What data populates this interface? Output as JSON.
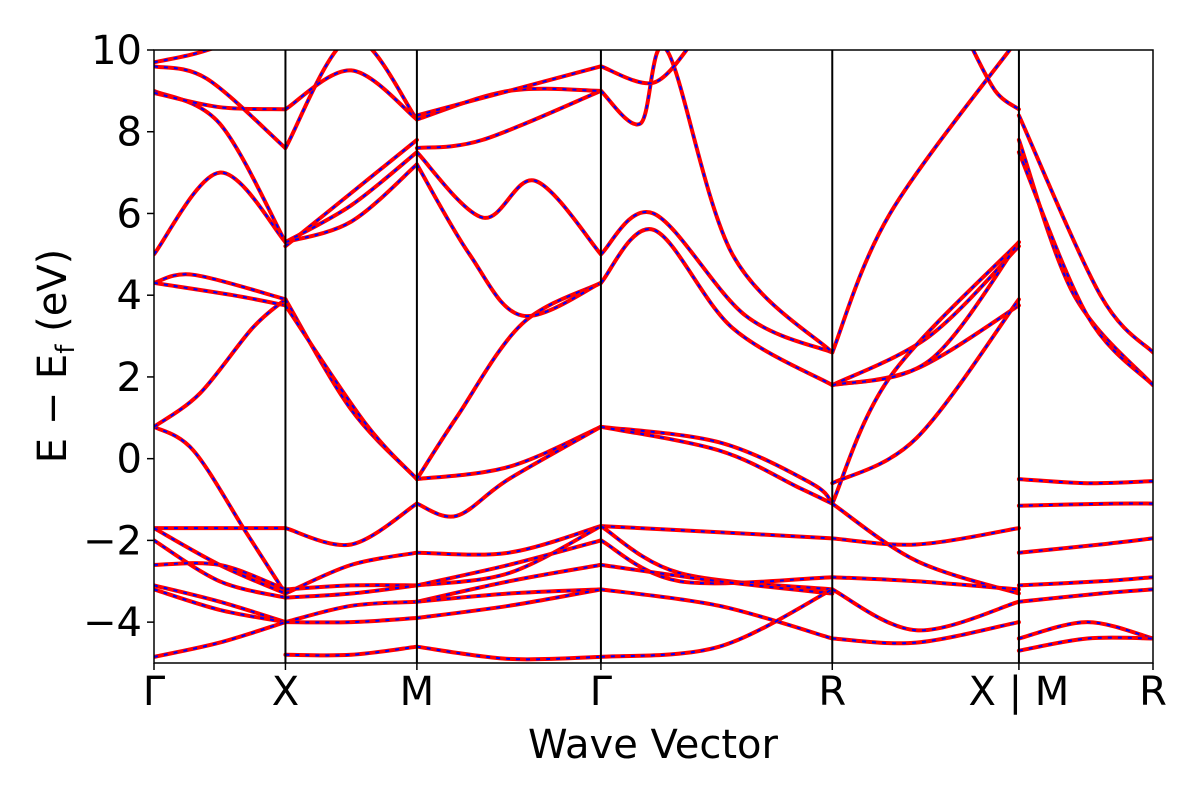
{
  "chart_data": {
    "type": "line",
    "title": "",
    "xlabel": "Wave Vector",
    "ylabel": "E − E_f (eV)",
    "ylabel_parts": {
      "main": "E − E",
      "sub": "f",
      "unit": " (eV)"
    },
    "ylim": [
      -5,
      10
    ],
    "yticks": [
      -4,
      -2,
      0,
      2,
      4,
      6,
      8,
      10
    ],
    "ytick_labels": [
      "−4",
      "−2",
      "0",
      "2",
      "4",
      "6",
      "8",
      "10"
    ],
    "xlim": [
      0,
      7.6
    ],
    "kpoints": [
      {
        "x": 0.0,
        "label": "Γ"
      },
      {
        "x": 1.0,
        "label": "X"
      },
      {
        "x": 2.0,
        "label": "M"
      },
      {
        "x": 3.4,
        "label": "Γ"
      },
      {
        "x": 5.16,
        "label": "R"
      },
      {
        "x": 6.58,
        "label": "X | M"
      },
      {
        "x": 7.6,
        "label": "R"
      }
    ],
    "grid": false,
    "legend": "none",
    "series_styles": [
      {
        "color": "#ff0000",
        "style": "solid"
      },
      {
        "color": "#0000ff",
        "style": "dashed"
      }
    ],
    "bands": [
      {
        "x": [
          0,
          0.3,
          0.7,
          1.0
        ],
        "y": [
          0.78,
          0.2,
          -1.8,
          -3.3
        ]
      },
      {
        "x": [
          0,
          0.35,
          0.75,
          1.0
        ],
        "y": [
          0.78,
          1.6,
          3.2,
          3.9
        ]
      },
      {
        "x": [
          0,
          0.3,
          1.0
        ],
        "y": [
          4.3,
          4.5,
          3.9
        ]
      },
      {
        "x": [
          0,
          0.6,
          1.0
        ],
        "y": [
          4.3,
          4.0,
          3.75
        ]
      },
      {
        "x": [
          0,
          0.5,
          1.0
        ],
        "y": [
          5.0,
          7.0,
          5.3
        ]
      },
      {
        "x": [
          0,
          0.5,
          1.0
        ],
        "y": [
          9.0,
          8.2,
          5.3
        ]
      },
      {
        "x": [
          0,
          0.5,
          1.0
        ],
        "y": [
          8.95,
          8.6,
          8.55
        ]
      },
      {
        "x": [
          0,
          0.4,
          1.0
        ],
        "y": [
          9.6,
          9.3,
          7.6
        ]
      },
      {
        "x": [
          0,
          0.3,
          0.6
        ],
        "y": [
          9.7,
          9.9,
          10.2
        ]
      },
      {
        "x": [
          0,
          0.5,
          1.0
        ],
        "y": [
          -1.7,
          -1.7,
          -1.7
        ]
      },
      {
        "x": [
          0,
          0.5,
          1.0
        ],
        "y": [
          -1.7,
          -2.6,
          -3.3
        ]
      },
      {
        "x": [
          0,
          0.5,
          1.0
        ],
        "y": [
          -2.0,
          -3.0,
          -3.4
        ]
      },
      {
        "x": [
          0,
          0.5,
          1.0
        ],
        "y": [
          -2.6,
          -2.6,
          -3.2
        ]
      },
      {
        "x": [
          0,
          0.5,
          1.0
        ],
        "y": [
          -3.1,
          -3.5,
          -4.0
        ]
      },
      {
        "x": [
          0,
          0.5,
          1.0
        ],
        "y": [
          -3.2,
          -3.7,
          -4.0
        ]
      },
      {
        "x": [
          0,
          0.5,
          1.0
        ],
        "y": [
          -4.85,
          -4.5,
          -4.0
        ]
      },
      {
        "x": [
          1.0,
          1.5,
          2.0
        ],
        "y": [
          3.9,
          1.2,
          -0.5
        ]
      },
      {
        "x": [
          1.0,
          1.6,
          2.0
        ],
        "y": [
          3.75,
          0.9,
          -0.5
        ]
      },
      {
        "x": [
          1.0,
          1.5,
          2.0
        ],
        "y": [
          5.2,
          6.5,
          7.8
        ]
      },
      {
        "x": [
          1.0,
          1.5,
          2.0
        ],
        "y": [
          5.3,
          6.2,
          7.5
        ]
      },
      {
        "x": [
          1.0,
          1.5,
          2.0
        ],
        "y": [
          5.3,
          5.8,
          7.2
        ]
      },
      {
        "x": [
          1.0,
          1.5,
          2.0
        ],
        "y": [
          7.6,
          10.3,
          8.3
        ]
      },
      {
        "x": [
          1.0,
          1.5,
          2.0
        ],
        "y": [
          8.55,
          9.5,
          8.3
        ]
      },
      {
        "x": [
          1.0,
          1.5,
          2.0
        ],
        "y": [
          -1.7,
          -2.1,
          -1.1
        ]
      },
      {
        "x": [
          1.0,
          1.5,
          2.0
        ],
        "y": [
          -3.3,
          -2.6,
          -2.3
        ]
      },
      {
        "x": [
          1.0,
          1.5,
          2.0
        ],
        "y": [
          -3.2,
          -3.1,
          -3.1
        ]
      },
      {
        "x": [
          1.0,
          1.5,
          2.0
        ],
        "y": [
          -3.4,
          -3.3,
          -3.1
        ]
      },
      {
        "x": [
          1.0,
          1.5,
          2.0
        ],
        "y": [
          -4.0,
          -3.6,
          -3.5
        ]
      },
      {
        "x": [
          1.0,
          1.5,
          2.0
        ],
        "y": [
          -4.0,
          -4.0,
          -3.9
        ]
      },
      {
        "x": [
          1.0,
          1.5,
          2.0
        ],
        "y": [
          -4.8,
          -4.8,
          -4.6
        ]
      },
      {
        "x": [
          2.0,
          2.7,
          3.4
        ],
        "y": [
          -0.5,
          -0.2,
          0.78
        ]
      },
      {
        "x": [
          2.0,
          2.3,
          2.8,
          3.4
        ],
        "y": [
          -0.5,
          1.0,
          3.3,
          4.3
        ]
      },
      {
        "x": [
          2.0,
          2.3,
          2.7,
          3.4
        ],
        "y": [
          -1.1,
          -1.4,
          -0.5,
          0.78
        ]
      },
      {
        "x": [
          2.0,
          2.4,
          2.8,
          3.4
        ],
        "y": [
          7.2,
          5.0,
          3.5,
          4.3
        ]
      },
      {
        "x": [
          2.0,
          2.5,
          2.9,
          3.4
        ],
        "y": [
          7.5,
          5.9,
          6.8,
          5.0
        ]
      },
      {
        "x": [
          2.0,
          2.5,
          3.4
        ],
        "y": [
          7.6,
          7.8,
          9.0
        ]
      },
      {
        "x": [
          2.0,
          2.7,
          3.4
        ],
        "y": [
          8.3,
          9.0,
          9.0
        ]
      },
      {
        "x": [
          2.0,
          2.7,
          3.4
        ],
        "y": [
          8.4,
          9.0,
          9.6
        ]
      },
      {
        "x": [
          2.0,
          2.7,
          3.4
        ],
        "y": [
          -2.3,
          -2.3,
          -1.65
        ]
      },
      {
        "x": [
          2.0,
          2.7,
          3.4
        ],
        "y": [
          -3.1,
          -2.8,
          -1.65
        ]
      },
      {
        "x": [
          2.0,
          2.7,
          3.4
        ],
        "y": [
          -3.1,
          -2.6,
          -2.0
        ]
      },
      {
        "x": [
          2.0,
          2.7,
          3.4
        ],
        "y": [
          -3.5,
          -3.0,
          -2.6
        ]
      },
      {
        "x": [
          2.0,
          2.7,
          3.4
        ],
        "y": [
          -3.5,
          -3.3,
          -3.2
        ]
      },
      {
        "x": [
          2.0,
          2.7,
          3.4
        ],
        "y": [
          -3.9,
          -3.6,
          -3.2
        ]
      },
      {
        "x": [
          2.0,
          2.7,
          3.4
        ],
        "y": [
          -4.6,
          -4.9,
          -4.85
        ]
      },
      {
        "x": [
          3.4,
          4.3,
          5.0,
          5.16
        ],
        "y": [
          0.78,
          0.4,
          -0.6,
          -1.1
        ]
      },
      {
        "x": [
          3.4,
          4.3,
          4.9,
          5.16
        ],
        "y": [
          0.78,
          0.2,
          -0.7,
          -1.1
        ]
      },
      {
        "x": [
          3.4,
          3.8,
          4.4,
          5.16
        ],
        "y": [
          4.3,
          5.6,
          3.2,
          1.8
        ]
      },
      {
        "x": [
          3.4,
          3.8,
          4.5,
          5.16
        ],
        "y": [
          5.0,
          6.0,
          3.5,
          2.6
        ]
      },
      {
        "x": [
          3.4,
          3.7,
          3.9,
          4.4,
          5.16
        ],
        "y": [
          9.0,
          8.2,
          10.0,
          5.0,
          2.6
        ]
      },
      {
        "x": [
          3.4,
          3.8,
          4.1
        ],
        "y": [
          9.6,
          9.2,
          10.2
        ]
      },
      {
        "x": [
          3.4,
          4.3,
          5.16
        ],
        "y": [
          -1.65,
          -1.8,
          -1.95
        ]
      },
      {
        "x": [
          3.4,
          4.0,
          5.16
        ],
        "y": [
          -1.65,
          -2.8,
          -3.2
        ]
      },
      {
        "x": [
          3.4,
          4.0,
          5.16
        ],
        "y": [
          -2.0,
          -3.0,
          -2.9
        ]
      },
      {
        "x": [
          3.4,
          4.3,
          5.16
        ],
        "y": [
          -2.6,
          -3.0,
          -3.3
        ]
      },
      {
        "x": [
          3.4,
          4.3,
          5.16
        ],
        "y": [
          -3.2,
          -3.6,
          -4.4
        ]
      },
      {
        "x": [
          3.4,
          4.3,
          5.16
        ],
        "y": [
          -4.85,
          -4.6,
          -3.2
        ]
      },
      {
        "x": [
          5.16,
          5.8,
          6.58
        ],
        "y": [
          1.8,
          2.2,
          3.75
        ]
      },
      {
        "x": [
          5.16,
          5.9,
          6.58
        ],
        "y": [
          1.8,
          3.0,
          5.2
        ]
      },
      {
        "x": [
          5.16,
          5.6,
          6.58
        ],
        "y": [
          2.6,
          6.0,
          10.3
        ]
      },
      {
        "x": [
          5.16,
          5.6,
          6.58
        ],
        "y": [
          -1.1,
          2.0,
          5.3
        ]
      },
      {
        "x": [
          5.16,
          5.8,
          6.58
        ],
        "y": [
          -0.6,
          0.5,
          3.9
        ]
      },
      {
        "x": [
          5.16,
          5.9,
          6.58
        ],
        "y": [
          1.8,
          2.4,
          5.3
        ]
      },
      {
        "x": [
          5.16,
          5.8,
          6.58
        ],
        "y": [
          -1.95,
          -2.1,
          -1.7
        ]
      },
      {
        "x": [
          5.16,
          5.8,
          6.58
        ],
        "y": [
          -1.1,
          -2.5,
          -3.3
        ]
      },
      {
        "x": [
          5.16,
          5.8,
          6.58
        ],
        "y": [
          -2.9,
          -3.0,
          -3.2
        ]
      },
      {
        "x": [
          5.16,
          5.8,
          6.58
        ],
        "y": [
          -3.2,
          -4.2,
          -3.5
        ]
      },
      {
        "x": [
          5.16,
          5.8,
          6.58
        ],
        "y": [
          -4.4,
          -4.5,
          -4.0
        ]
      },
      {
        "x": [
          6.2,
          6.4,
          6.58
        ],
        "y": [
          10.2,
          9.0,
          8.55
        ]
      },
      {
        "x": [
          6.58,
          7.0,
          7.6
        ],
        "y": [
          7.8,
          4.0,
          1.8
        ]
      },
      {
        "x": [
          6.58,
          7.1,
          7.6
        ],
        "y": [
          7.5,
          3.5,
          1.8
        ]
      },
      {
        "x": [
          6.58,
          7.2,
          7.6
        ],
        "y": [
          8.4,
          4.0,
          2.6
        ]
      },
      {
        "x": [
          6.58,
          7.1,
          7.6
        ],
        "y": [
          -0.5,
          -0.6,
          -0.55
        ]
      },
      {
        "x": [
          6.58,
          7.3,
          7.6
        ],
        "y": [
          -1.15,
          -1.1,
          -1.1
        ]
      },
      {
        "x": [
          6.58,
          7.2,
          7.6
        ],
        "y": [
          -2.3,
          -2.1,
          -1.95
        ]
      },
      {
        "x": [
          6.58,
          7.2,
          7.6
        ],
        "y": [
          -3.1,
          -3.0,
          -2.9
        ]
      },
      {
        "x": [
          6.58,
          7.2,
          7.6
        ],
        "y": [
          -3.5,
          -3.3,
          -3.2
        ]
      },
      {
        "x": [
          6.58,
          7.1,
          7.6
        ],
        "y": [
          -4.4,
          -4.0,
          -4.4
        ]
      },
      {
        "x": [
          6.58,
          7.1,
          7.6
        ],
        "y": [
          -4.7,
          -4.4,
          -4.4
        ]
      }
    ]
  }
}
